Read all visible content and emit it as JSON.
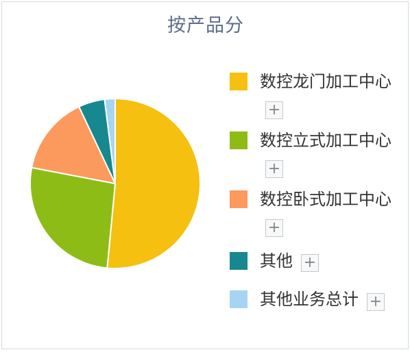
{
  "chart_data": {
    "type": "pie",
    "title": "按产品分",
    "series": [
      {
        "name": "数控龙门加工中心",
        "value": 51.5,
        "color": "#f5c010"
      },
      {
        "name": "数控立式加工中心",
        "value": 26.5,
        "color": "#8ebc16"
      },
      {
        "name": "数控卧式加工中心",
        "value": 15.0,
        "color": "#fb9a5c"
      },
      {
        "name": "其他",
        "value": 5.0,
        "color": "#17888f"
      },
      {
        "name": "其他业务总计",
        "value": 2.0,
        "color": "#a8d4f4"
      }
    ],
    "legend_position": "right"
  },
  "legend": {
    "expand_symbol": "+",
    "expand_icon": "plus-icon"
  }
}
